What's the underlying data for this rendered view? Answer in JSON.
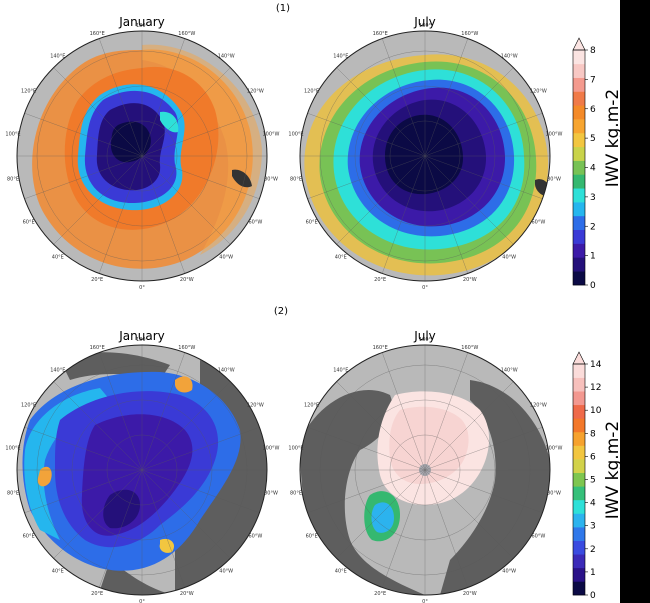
{
  "panel_labels": {
    "top": "(1)",
    "bottom": "(2)"
  },
  "maps": [
    {
      "title": "January",
      "lon_labels": [
        "180°",
        "160°W",
        "140°W",
        "120°W",
        "100°W",
        "80°W",
        "60°W",
        "40°W",
        "20°W",
        "0°",
        "20°E",
        "40°E",
        "60°E",
        "80°E",
        "100°E",
        "120°E",
        "140°E",
        "160°E"
      ]
    },
    {
      "title": "July",
      "lon_labels": [
        "180°",
        "160°W",
        "140°W",
        "120°W",
        "100°W",
        "80°W",
        "60°W",
        "40°W",
        "20°W",
        "0°",
        "20°E",
        "40°E",
        "60°E",
        "80°E",
        "100°E",
        "120°E",
        "140°E",
        "160°E"
      ]
    },
    {
      "title": "January",
      "lon_labels": [
        "180°",
        "160°W",
        "140°W",
        "120°W",
        "100°W",
        "80°W",
        "60°W",
        "40°W",
        "20°W",
        "0°",
        "20°E",
        "40°E",
        "60°E",
        "80°E",
        "100°E",
        "120°E",
        "140°E",
        "160°E"
      ]
    },
    {
      "title": "July",
      "lon_labels": [
        "180°",
        "160°W",
        "140°W",
        "120°W",
        "100°W",
        "80°W",
        "60°W",
        "40°W",
        "20°W",
        "0°",
        "20°E",
        "40°E",
        "60°E",
        "80°E",
        "100°E",
        "120°E",
        "140°E",
        "160°E"
      ]
    }
  ],
  "colorbar_top": {
    "title": "IWV kg.m-2",
    "ticks": [
      "0",
      "1",
      "2",
      "3",
      "4",
      "5",
      "6",
      "7",
      "8"
    ],
    "colors": [
      "#0b0a45",
      "#24107a",
      "#3c1aa8",
      "#3a3ad6",
      "#2d6de8",
      "#25b6ee",
      "#2ee0d8",
      "#35b870",
      "#78c255",
      "#c9d34a",
      "#f2c640",
      "#f7a530",
      "#f48a28",
      "#f07a48",
      "#f49a8e",
      "#f8c8c4",
      "#fbe4e2"
    ]
  },
  "colorbar_bottom": {
    "title": "IWV kg.m-2",
    "ticks": [
      "0",
      "1",
      "2",
      "3",
      "4",
      "5",
      "6",
      "8",
      "10",
      "12",
      "14"
    ],
    "colors": [
      "#0b0a45",
      "#2a1288",
      "#3b2ab8",
      "#3a4be0",
      "#2f78ea",
      "#2cb3ee",
      "#2ee0d8",
      "#36c07a",
      "#7ec650",
      "#d2d24a",
      "#f2c640",
      "#f6a22e",
      "#f3782a",
      "#ef6a4a",
      "#f39890",
      "#f7c0bc",
      "#fbdcda"
    ]
  }
}
